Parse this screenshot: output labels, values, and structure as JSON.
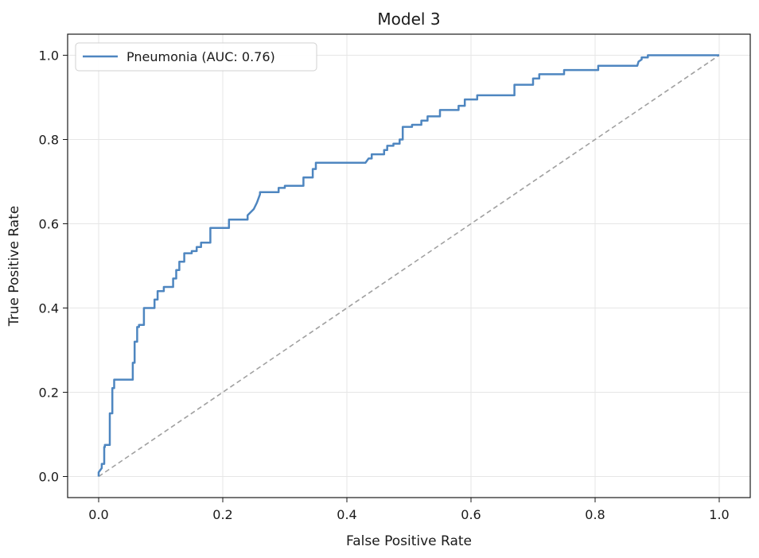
{
  "chart_data": {
    "type": "line",
    "title": "Model 3",
    "xlabel": "False Positive Rate",
    "ylabel": "True Positive Rate",
    "xlim": [
      -0.05,
      1.05
    ],
    "ylim": [
      -0.05,
      1.05
    ],
    "x_ticks": [
      0.0,
      0.2,
      0.4,
      0.6,
      0.8,
      1.0
    ],
    "y_ticks": [
      0.0,
      0.2,
      0.4,
      0.6,
      0.8,
      1.0
    ],
    "x_tick_labels": [
      "0.0",
      "0.2",
      "0.4",
      "0.6",
      "0.8",
      "1.0"
    ],
    "y_tick_labels": [
      "0.0",
      "0.2",
      "0.4",
      "0.6",
      "0.8",
      "1.0"
    ],
    "grid": true,
    "legend_position": "upper-left",
    "series": [
      {
        "name": "Pneumonia (AUC: 0.76)",
        "color": "#4e86c0",
        "x": [
          0.0,
          0.0,
          0.005,
          0.005,
          0.009,
          0.009,
          0.01,
          0.01,
          0.018,
          0.018,
          0.022,
          0.022,
          0.025,
          0.025,
          0.035,
          0.035,
          0.055,
          0.055,
          0.058,
          0.058,
          0.062,
          0.062,
          0.065,
          0.065,
          0.073,
          0.073,
          0.09,
          0.09,
          0.095,
          0.095,
          0.105,
          0.105,
          0.12,
          0.12,
          0.125,
          0.125,
          0.13,
          0.13,
          0.138,
          0.138,
          0.15,
          0.15,
          0.158,
          0.158,
          0.165,
          0.165,
          0.18,
          0.18,
          0.19,
          0.19,
          0.21,
          0.21,
          0.24,
          0.24,
          0.25,
          0.255,
          0.26,
          0.26,
          0.29,
          0.29,
          0.3,
          0.3,
          0.33,
          0.33,
          0.345,
          0.345,
          0.35,
          0.35,
          0.43,
          0.435,
          0.44,
          0.44,
          0.46,
          0.46,
          0.465,
          0.465,
          0.475,
          0.475,
          0.485,
          0.485,
          0.49,
          0.49,
          0.505,
          0.505,
          0.52,
          0.52,
          0.53,
          0.53,
          0.55,
          0.55,
          0.58,
          0.58,
          0.59,
          0.59,
          0.61,
          0.61,
          0.67,
          0.67,
          0.7,
          0.7,
          0.71,
          0.71,
          0.75,
          0.75,
          0.805,
          0.805,
          0.868,
          0.87,
          0.875,
          0.875,
          0.885,
          0.885,
          0.95,
          0.98,
          1.0
        ],
        "y": [
          0.0,
          0.01,
          0.02,
          0.03,
          0.03,
          0.07,
          0.07,
          0.075,
          0.075,
          0.15,
          0.15,
          0.21,
          0.21,
          0.23,
          0.23,
          0.23,
          0.23,
          0.27,
          0.27,
          0.32,
          0.32,
          0.355,
          0.355,
          0.36,
          0.36,
          0.4,
          0.4,
          0.42,
          0.42,
          0.44,
          0.44,
          0.45,
          0.45,
          0.47,
          0.47,
          0.49,
          0.49,
          0.51,
          0.51,
          0.53,
          0.53,
          0.535,
          0.535,
          0.545,
          0.545,
          0.555,
          0.555,
          0.59,
          0.59,
          0.59,
          0.59,
          0.61,
          0.61,
          0.62,
          0.635,
          0.65,
          0.67,
          0.675,
          0.675,
          0.685,
          0.685,
          0.69,
          0.69,
          0.71,
          0.71,
          0.73,
          0.73,
          0.745,
          0.745,
          0.755,
          0.755,
          0.765,
          0.765,
          0.775,
          0.775,
          0.785,
          0.785,
          0.79,
          0.79,
          0.8,
          0.8,
          0.83,
          0.83,
          0.835,
          0.835,
          0.845,
          0.845,
          0.855,
          0.855,
          0.87,
          0.87,
          0.88,
          0.88,
          0.895,
          0.895,
          0.905,
          0.905,
          0.93,
          0.93,
          0.945,
          0.945,
          0.955,
          0.955,
          0.965,
          0.965,
          0.975,
          0.975,
          0.985,
          0.99,
          0.995,
          0.995,
          1.0,
          1.0,
          1.0,
          1.0
        ]
      }
    ],
    "reference_line": {
      "x": [
        0.0,
        1.0
      ],
      "y": [
        0.0,
        1.0
      ],
      "color": "#a0a0a0",
      "style": "dashed"
    }
  }
}
